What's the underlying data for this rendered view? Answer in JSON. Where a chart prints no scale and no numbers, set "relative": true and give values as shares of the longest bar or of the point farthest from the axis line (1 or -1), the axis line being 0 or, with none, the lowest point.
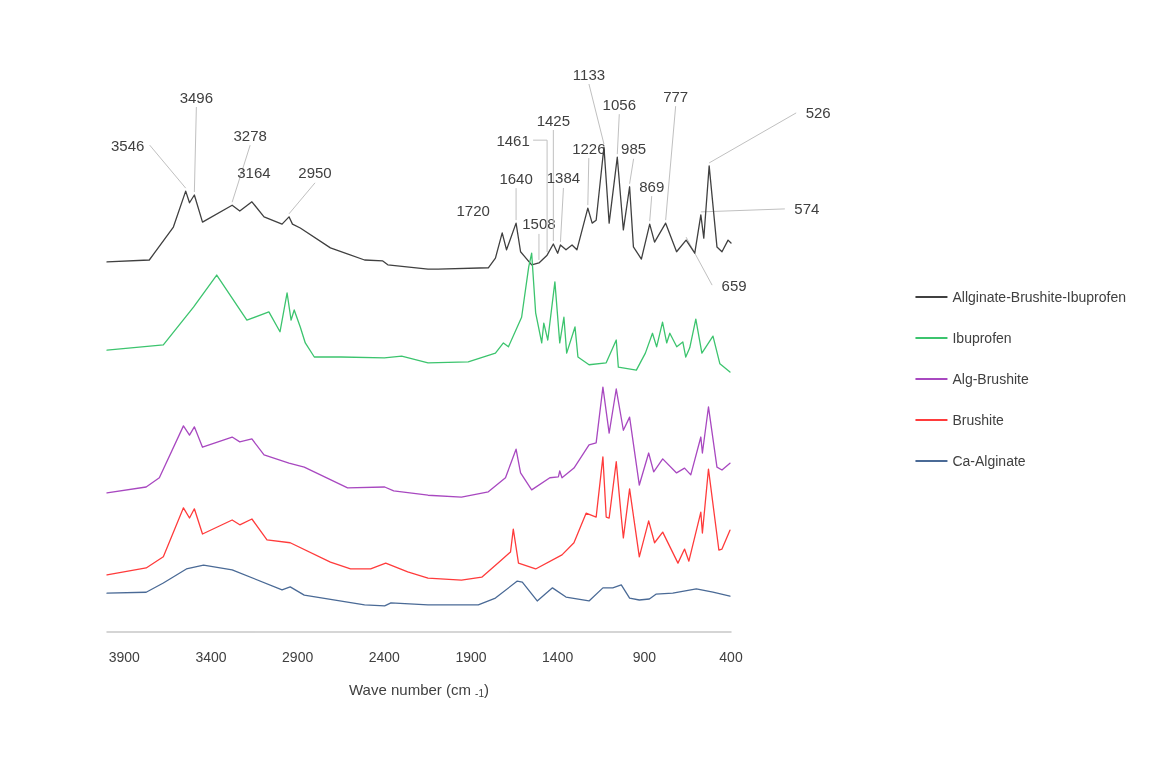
{
  "chart_data": {
    "type": "line",
    "relative": true,
    "xlabel": "Wave number (cm $_{-1}$)",
    "xlim": [
      4000,
      400
    ],
    "xticks": [
      3900,
      3400,
      2900,
      2400,
      1900,
      1400,
      900,
      400
    ],
    "grid": false,
    "legend": "right",
    "marker": "none",
    "line_style": "solid",
    "series": [
      {
        "name": "Allginate-Brushite-Ibuprofen",
        "color": "#404040",
        "x": [
          4000,
          3756,
          3617,
          3546,
          3524,
          3496,
          3449,
          3278,
          3234,
          3164,
          3094,
          2990,
          2950,
          2930,
          2885,
          2711,
          2514,
          2409,
          2380,
          2148,
          2090,
          1800,
          1759,
          1720,
          1695,
          1640,
          1614,
          1550,
          1508,
          1461,
          1425,
          1400,
          1384,
          1352,
          1317,
          1289,
          1226,
          1201,
          1178,
          1133,
          1103,
          1056,
          1021,
          985,
          963,
          917,
          869,
          841,
          777,
          714,
          659,
          609,
          574,
          557,
          526,
          481,
          452,
          417,
          400
        ],
        "values": [
          0.763,
          0.767,
          0.835,
          0.909,
          0.885,
          0.901,
          0.845,
          0.88,
          0.868,
          0.887,
          0.856,
          0.841,
          0.856,
          0.841,
          0.833,
          0.792,
          0.767,
          0.765,
          0.757,
          0.748,
          0.748,
          0.751,
          0.771,
          0.823,
          0.788,
          0.843,
          0.784,
          0.757,
          0.761,
          0.777,
          0.8,
          0.781,
          0.798,
          0.788,
          0.798,
          0.788,
          0.874,
          0.843,
          0.849,
          1.0,
          0.843,
          0.979,
          0.829,
          0.918,
          0.794,
          0.769,
          0.841,
          0.804,
          0.843,
          0.784,
          0.808,
          0.781,
          0.86,
          0.812,
          0.961,
          0.794,
          0.784,
          0.808,
          0.802
        ]
      },
      {
        "name": "Ibuprofen",
        "color": "#3cc46e",
        "x": [
          4000,
          3675,
          3501,
          3367,
          3193,
          3066,
          3002,
          2961,
          2938,
          2920,
          2885,
          2856,
          2804,
          2650,
          2400,
          2300,
          2148,
          1916,
          1759,
          1713,
          1684,
          1608,
          1567,
          1550,
          1527,
          1492,
          1480,
          1457,
          1416,
          1388,
          1364,
          1348,
          1300,
          1283,
          1219,
          1120,
          1062,
          1050,
          946,
          894,
          853,
          829,
          795,
          771,
          753,
          713,
          678,
          661,
          638,
          603,
          568,
          504,
          464,
          406
        ],
        "values": [
          0.581,
          0.592,
          0.67,
          0.736,
          0.643,
          0.66,
          0.619,
          0.699,
          0.643,
          0.664,
          0.629,
          0.596,
          0.567,
          0.567,
          0.565,
          0.569,
          0.555,
          0.557,
          0.575,
          0.596,
          0.588,
          0.649,
          0.753,
          0.781,
          0.658,
          0.596,
          0.637,
          0.602,
          0.722,
          0.596,
          0.649,
          0.575,
          0.629,
          0.567,
          0.551,
          0.555,
          0.602,
          0.546,
          0.54,
          0.575,
          0.616,
          0.588,
          0.639,
          0.596,
          0.616,
          0.588,
          0.598,
          0.567,
          0.586,
          0.645,
          0.575,
          0.61,
          0.553,
          0.536
        ]
      },
      {
        "name": "Alg-Brushite",
        "color": "#a848c0",
        "x": [
          4000,
          3774,
          3698,
          3559,
          3524,
          3496,
          3449,
          3278,
          3234,
          3164,
          3094,
          2950,
          2862,
          2612,
          2398,
          2346,
          2148,
          1955,
          1800,
          1701,
          1640,
          1614,
          1550,
          1445,
          1396,
          1388,
          1375,
          1306,
          1219,
          1178,
          1139,
          1103,
          1062,
          1021,
          985,
          929,
          875,
          846,
          794,
          714,
          668,
          632,
          574,
          565,
          530,
          481,
          452,
          406
        ],
        "values": [
          0.287,
          0.299,
          0.318,
          0.425,
          0.406,
          0.423,
          0.381,
          0.402,
          0.392,
          0.398,
          0.365,
          0.348,
          0.34,
          0.297,
          0.299,
          0.291,
          0.282,
          0.278,
          0.289,
          0.318,
          0.377,
          0.328,
          0.293,
          0.318,
          0.32,
          0.332,
          0.318,
          0.338,
          0.386,
          0.39,
          0.505,
          0.41,
          0.501,
          0.416,
          0.443,
          0.303,
          0.369,
          0.33,
          0.357,
          0.328,
          0.338,
          0.324,
          0.402,
          0.369,
          0.464,
          0.34,
          0.334,
          0.348
        ]
      },
      {
        "name": "Brushite",
        "color": "#ff3b3b",
        "x": [
          4000,
          3774,
          3675,
          3559,
          3524,
          3496,
          3449,
          3278,
          3234,
          3164,
          3077,
          2943,
          2711,
          2595,
          2479,
          2392,
          2265,
          2148,
          1955,
          1838,
          1739,
          1672,
          1656,
          1626,
          1527,
          1375,
          1306,
          1236,
          1178,
          1139,
          1120,
          1103,
          1062,
          1033,
          1021,
          985,
          929,
          875,
          841,
          794,
          706,
          668,
          643,
          574,
          565,
          530,
          470,
          452,
          406
        ],
        "values": [
          0.118,
          0.132,
          0.155,
          0.256,
          0.235,
          0.254,
          0.202,
          0.231,
          0.221,
          0.233,
          0.19,
          0.184,
          0.144,
          0.13,
          0.13,
          0.142,
          0.124,
          0.111,
          0.107,
          0.113,
          0.144,
          0.165,
          0.212,
          0.142,
          0.13,
          0.159,
          0.184,
          0.245,
          0.237,
          0.361,
          0.237,
          0.235,
          0.351,
          0.237,
          0.194,
          0.295,
          0.155,
          0.229,
          0.184,
          0.206,
          0.142,
          0.171,
          0.146,
          0.247,
          0.204,
          0.336,
          0.169,
          0.171,
          0.21
        ]
      },
      {
        "name": "Ca-Alginate",
        "color": "#4a6a96",
        "x": [
          4000,
          3774,
          3675,
          3542,
          3443,
          3278,
          2990,
          2943,
          2862,
          2514,
          2398,
          2362,
          2148,
          1858,
          1759,
          1633,
          1604,
          1518,
          1430,
          1352,
          1219,
          1139,
          1082,
          1033,
          985,
          929,
          871,
          833,
          736,
          600,
          504,
          406
        ],
        "values": [
          0.08,
          0.082,
          0.101,
          0.13,
          0.138,
          0.128,
          0.087,
          0.093,
          0.076,
          0.056,
          0.054,
          0.06,
          0.056,
          0.056,
          0.07,
          0.105,
          0.103,
          0.064,
          0.091,
          0.072,
          0.064,
          0.091,
          0.091,
          0.097,
          0.07,
          0.066,
          0.068,
          0.078,
          0.08,
          0.089,
          0.082,
          0.074
        ]
      }
    ],
    "annotations": [
      {
        "text": "3546",
        "x": 3546,
        "y": 0.909
      },
      {
        "text": "3496",
        "x": 3496,
        "y": 0.901
      },
      {
        "text": "3278",
        "x": 3278,
        "y": 0.88
      },
      {
        "text": "3164",
        "x": 3164,
        "y": 0.887
      },
      {
        "text": "2950",
        "x": 2950,
        "y": 0.856
      },
      {
        "text": "1720",
        "x": 1720,
        "y": 0.823
      },
      {
        "text": "1640",
        "x": 1640,
        "y": 0.843
      },
      {
        "text": "1508",
        "x": 1508,
        "y": 0.761
      },
      {
        "text": "1461",
        "x": 1461,
        "y": 0.777
      },
      {
        "text": "1425",
        "x": 1425,
        "y": 0.8
      },
      {
        "text": "1384",
        "x": 1384,
        "y": 0.798
      },
      {
        "text": "1226",
        "x": 1226,
        "y": 0.874
      },
      {
        "text": "1133",
        "x": 1133,
        "y": 1.0
      },
      {
        "text": "1056",
        "x": 1056,
        "y": 0.979
      },
      {
        "text": "985",
        "x": 985,
        "y": 0.918
      },
      {
        "text": "869",
        "x": 869,
        "y": 0.841
      },
      {
        "text": "777",
        "x": 777,
        "y": 0.843
      },
      {
        "text": "526",
        "x": 526,
        "y": 0.961
      },
      {
        "text": "574",
        "x": 574,
        "y": 0.86
      },
      {
        "text": "659",
        "x": 659,
        "y": 0.808
      }
    ]
  }
}
